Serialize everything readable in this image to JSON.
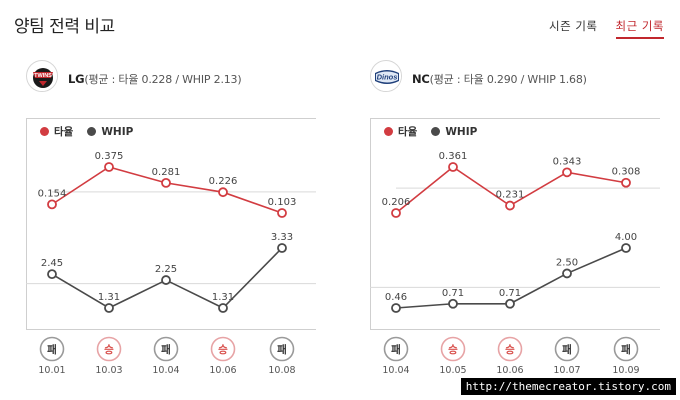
{
  "page": {
    "title": "양팀 전력 비교",
    "tabs": [
      {
        "label": "시즌 기록",
        "active": false
      },
      {
        "label": "최근 기록",
        "active": true
      }
    ],
    "watermark": "http://themecreator.tistory.com"
  },
  "colors": {
    "avg_line": "#d23c41",
    "whip_line": "#4a4a4a",
    "accent": "#c1272d",
    "win": "#d9534f",
    "loss": "#333333"
  },
  "legend": {
    "avg": "타율",
    "whip": "WHIP"
  },
  "teams": [
    {
      "id": "lg",
      "name": "LG",
      "summary": "(평균 : 타율 0.228 / WHIP 2.13)",
      "logo_text": "TWINS",
      "chart_data": {
        "type": "line",
        "x": [
          "10.01",
          "10.03",
          "10.04",
          "10.06",
          "10.08"
        ],
        "series": [
          {
            "name": "타율",
            "values": [
              0.154,
              0.375,
              0.281,
              0.226,
              0.103
            ],
            "labels": [
              "0.154",
              "0.375",
              "0.281",
              "0.226",
              "0.103"
            ]
          },
          {
            "name": "WHIP",
            "values": [
              2.45,
              1.31,
              2.25,
              1.31,
              3.33
            ],
            "labels": [
              "2.45",
              "1.31",
              "2.25",
              "1.31",
              "3.33"
            ]
          }
        ],
        "results": [
          "패",
          "승",
          "패",
          "승",
          "패"
        ],
        "averages": {
          "avg": 0.228,
          "whip": 2.13
        }
      }
    },
    {
      "id": "nc",
      "name": "NC",
      "summary": "(평균 : 타율 0.290 / WHIP 1.68)",
      "logo_text": "Dinos",
      "chart_data": {
        "type": "line",
        "x": [
          "10.04",
          "10.05",
          "10.06",
          "10.07",
          "10.09"
        ],
        "series": [
          {
            "name": "타율",
            "values": [
              0.206,
              0.361,
              0.231,
              0.343,
              0.308
            ],
            "labels": [
              "0.206",
              "0.361",
              "0.231",
              "0.343",
              "0.308"
            ]
          },
          {
            "name": "WHIP",
            "values": [
              0.46,
              0.71,
              0.71,
              2.5,
              4.0
            ],
            "labels": [
              "0.46",
              "0.71",
              "0.71",
              "2.50",
              "4.00"
            ]
          }
        ],
        "results": [
          "패",
          "승",
          "승",
          "패",
          "패"
        ],
        "averages": {
          "avg": 0.29,
          "whip": 1.68
        }
      }
    }
  ]
}
